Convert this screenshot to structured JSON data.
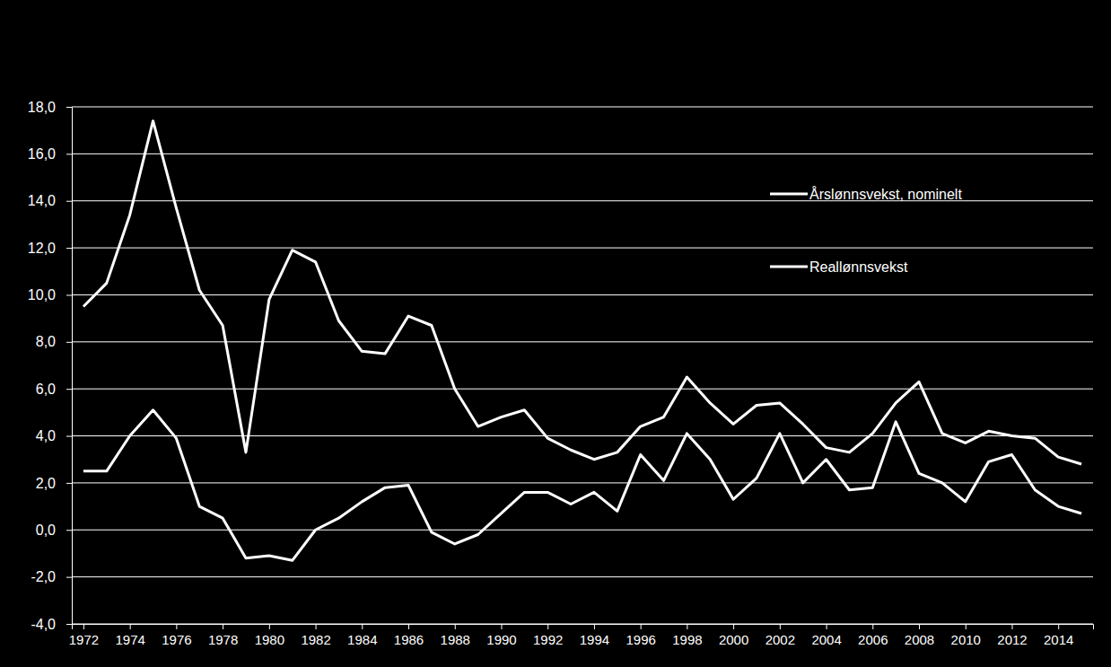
{
  "chart_data": {
    "type": "line",
    "x": [
      1972,
      1973,
      1974,
      1975,
      1976,
      1977,
      1978,
      1979,
      1980,
      1981,
      1982,
      1983,
      1984,
      1985,
      1986,
      1987,
      1988,
      1989,
      1990,
      1991,
      1992,
      1993,
      1994,
      1995,
      1996,
      1997,
      1998,
      1999,
      2000,
      2001,
      2002,
      2003,
      2004,
      2005,
      2006,
      2007,
      2008,
      2009,
      2010,
      2011,
      2012,
      2013,
      2014,
      2015
    ],
    "series": [
      {
        "name": "Årslønnsvekst, nominelt",
        "color": "#ffffff",
        "values": [
          9.5,
          10.5,
          13.4,
          17.4,
          13.7,
          10.2,
          8.7,
          3.3,
          9.8,
          11.9,
          11.4,
          8.9,
          7.6,
          7.5,
          9.1,
          8.7,
          6.0,
          4.4,
          4.8,
          5.1,
          3.9,
          3.4,
          3.0,
          3.3,
          4.4,
          4.8,
          6.5,
          5.4,
          4.5,
          5.3,
          5.4,
          4.5,
          3.5,
          3.3,
          4.1,
          5.4,
          6.3,
          4.1,
          3.7,
          4.2,
          4.0,
          3.9,
          3.1,
          2.8
        ]
      },
      {
        "name": "Reallønnsvekst",
        "color": "#ffffff",
        "values": [
          2.5,
          2.5,
          4.0,
          5.1,
          3.9,
          1.0,
          0.5,
          -1.2,
          -1.1,
          -1.3,
          0.0,
          0.5,
          1.2,
          1.8,
          1.9,
          -0.1,
          -0.6,
          -0.2,
          0.7,
          1.6,
          1.6,
          1.1,
          1.6,
          0.8,
          3.2,
          2.1,
          4.1,
          3.0,
          1.3,
          2.2,
          4.1,
          2.0,
          3.0,
          1.7,
          1.8,
          4.6,
          2.4,
          2.0,
          1.2,
          2.9,
          3.2,
          1.7,
          1.0,
          0.7
        ]
      }
    ],
    "xlim": [
      1971.5,
      2015.5
    ],
    "xticks": [
      1972,
      1974,
      1976,
      1978,
      1980,
      1982,
      1984,
      1986,
      1988,
      1990,
      1992,
      1994,
      1996,
      1998,
      2000,
      2002,
      2004,
      2006,
      2008,
      2010,
      2012,
      2014
    ],
    "ylim": [
      -4,
      18
    ],
    "yticks": [
      {
        "value": -4,
        "label": "-4,0"
      },
      {
        "value": -2,
        "label": "-2,0"
      },
      {
        "value": 0,
        "label": "0,0"
      },
      {
        "value": 2,
        "label": "2,0"
      },
      {
        "value": 4,
        "label": "4,0"
      },
      {
        "value": 6,
        "label": "6,0"
      },
      {
        "value": 8,
        "label": "8,0"
      },
      {
        "value": 10,
        "label": "10,0"
      },
      {
        "value": 12,
        "label": "12,0"
      },
      {
        "value": 14,
        "label": "14,0"
      },
      {
        "value": 16,
        "label": "16,0"
      },
      {
        "value": 18,
        "label": "18,0"
      }
    ],
    "grid": true,
    "legend": "upper right"
  }
}
